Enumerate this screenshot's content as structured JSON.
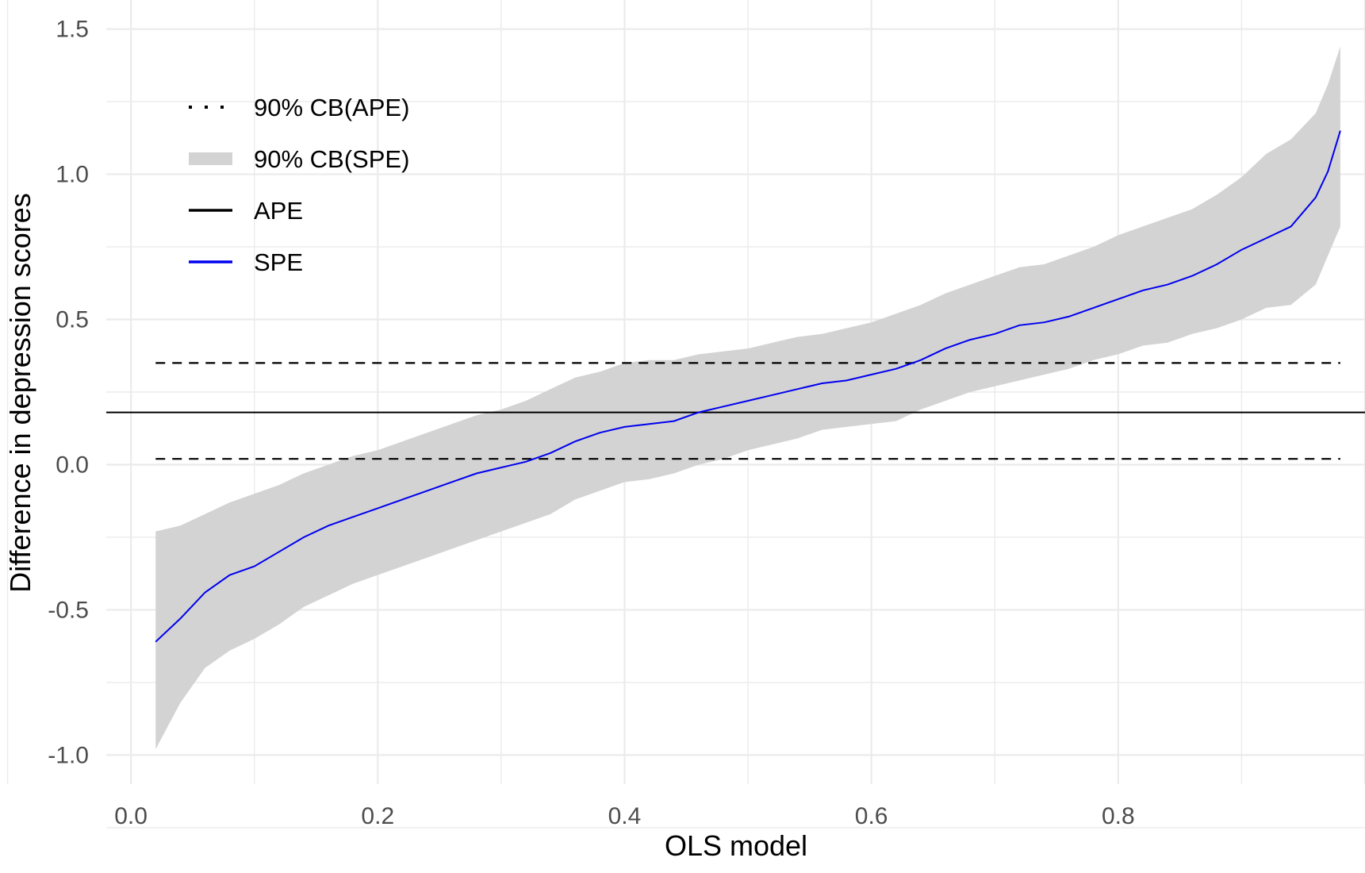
{
  "chart_data": {
    "type": "line",
    "title": "",
    "xlabel": "OLS model",
    "ylabel": "Difference in depression scores",
    "xlim": [
      -0.02,
      1.0
    ],
    "ylim": [
      -1.1,
      1.6
    ],
    "x_ticks": [
      0.0,
      0.2,
      0.4,
      0.6,
      0.8
    ],
    "x_tick_labels": [
      "0.0",
      "0.2",
      "0.4",
      "0.6",
      "0.8"
    ],
    "y_ticks": [
      -1.0,
      -0.5,
      0.0,
      0.5,
      1.0,
      1.5
    ],
    "y_tick_labels": [
      "-1.0",
      "-0.5",
      "0.0",
      "0.5",
      "1.0",
      "1.5"
    ],
    "grid": true,
    "legend_position": "top-left",
    "legend": [
      {
        "label": "90% CB(APE)",
        "style": "dotted",
        "color": "#000000"
      },
      {
        "label": "90% CB(SPE)",
        "style": "band",
        "color": "#d3d3d3"
      },
      {
        "label": "APE",
        "style": "solid",
        "color": "#000000"
      },
      {
        "label": "SPE",
        "style": "solid",
        "color": "#0000ee"
      }
    ],
    "ape": {
      "value": 0.18,
      "x_range": [
        -0.02,
        1.0
      ],
      "color": "#000000"
    },
    "cb_ape": {
      "lower": 0.02,
      "upper": 0.35,
      "x_range": [
        0.02,
        0.98
      ]
    },
    "series": [
      {
        "name": "SPE",
        "color": "#0000ee",
        "x": [
          0.02,
          0.04,
          0.06,
          0.08,
          0.1,
          0.12,
          0.14,
          0.16,
          0.18,
          0.2,
          0.22,
          0.24,
          0.26,
          0.28,
          0.3,
          0.32,
          0.34,
          0.36,
          0.38,
          0.4,
          0.42,
          0.44,
          0.46,
          0.48,
          0.5,
          0.52,
          0.54,
          0.56,
          0.58,
          0.6,
          0.62,
          0.64,
          0.66,
          0.68,
          0.7,
          0.72,
          0.74,
          0.76,
          0.78,
          0.8,
          0.82,
          0.84,
          0.86,
          0.88,
          0.9,
          0.92,
          0.94,
          0.96,
          0.97,
          0.98
        ],
        "y": [
          -0.61,
          -0.53,
          -0.44,
          -0.38,
          -0.35,
          -0.3,
          -0.25,
          -0.21,
          -0.18,
          -0.15,
          -0.12,
          -0.09,
          -0.06,
          -0.03,
          -0.01,
          0.01,
          0.04,
          0.08,
          0.11,
          0.13,
          0.14,
          0.15,
          0.18,
          0.2,
          0.22,
          0.24,
          0.26,
          0.28,
          0.29,
          0.31,
          0.33,
          0.36,
          0.4,
          0.43,
          0.45,
          0.48,
          0.49,
          0.51,
          0.54,
          0.57,
          0.6,
          0.62,
          0.65,
          0.69,
          0.74,
          0.78,
          0.82,
          0.92,
          1.01,
          1.15
        ],
        "lower": [
          -0.98,
          -0.82,
          -0.7,
          -0.64,
          -0.6,
          -0.55,
          -0.49,
          -0.45,
          -0.41,
          -0.38,
          -0.35,
          -0.32,
          -0.29,
          -0.26,
          -0.23,
          -0.2,
          -0.17,
          -0.12,
          -0.09,
          -0.06,
          -0.05,
          -0.03,
          0.0,
          0.02,
          0.05,
          0.07,
          0.09,
          0.12,
          0.13,
          0.14,
          0.15,
          0.19,
          0.22,
          0.25,
          0.27,
          0.29,
          0.31,
          0.33,
          0.36,
          0.38,
          0.41,
          0.42,
          0.45,
          0.47,
          0.5,
          0.54,
          0.55,
          0.62,
          0.72,
          0.82
        ],
        "upper": [
          -0.23,
          -0.21,
          -0.17,
          -0.13,
          -0.1,
          -0.07,
          -0.03,
          0.0,
          0.03,
          0.05,
          0.08,
          0.11,
          0.14,
          0.17,
          0.19,
          0.22,
          0.26,
          0.3,
          0.32,
          0.35,
          0.36,
          0.36,
          0.38,
          0.39,
          0.4,
          0.42,
          0.44,
          0.45,
          0.47,
          0.49,
          0.52,
          0.55,
          0.59,
          0.62,
          0.65,
          0.68,
          0.69,
          0.72,
          0.75,
          0.79,
          0.82,
          0.85,
          0.88,
          0.93,
          0.99,
          1.07,
          1.12,
          1.21,
          1.31,
          1.44
        ]
      }
    ]
  }
}
